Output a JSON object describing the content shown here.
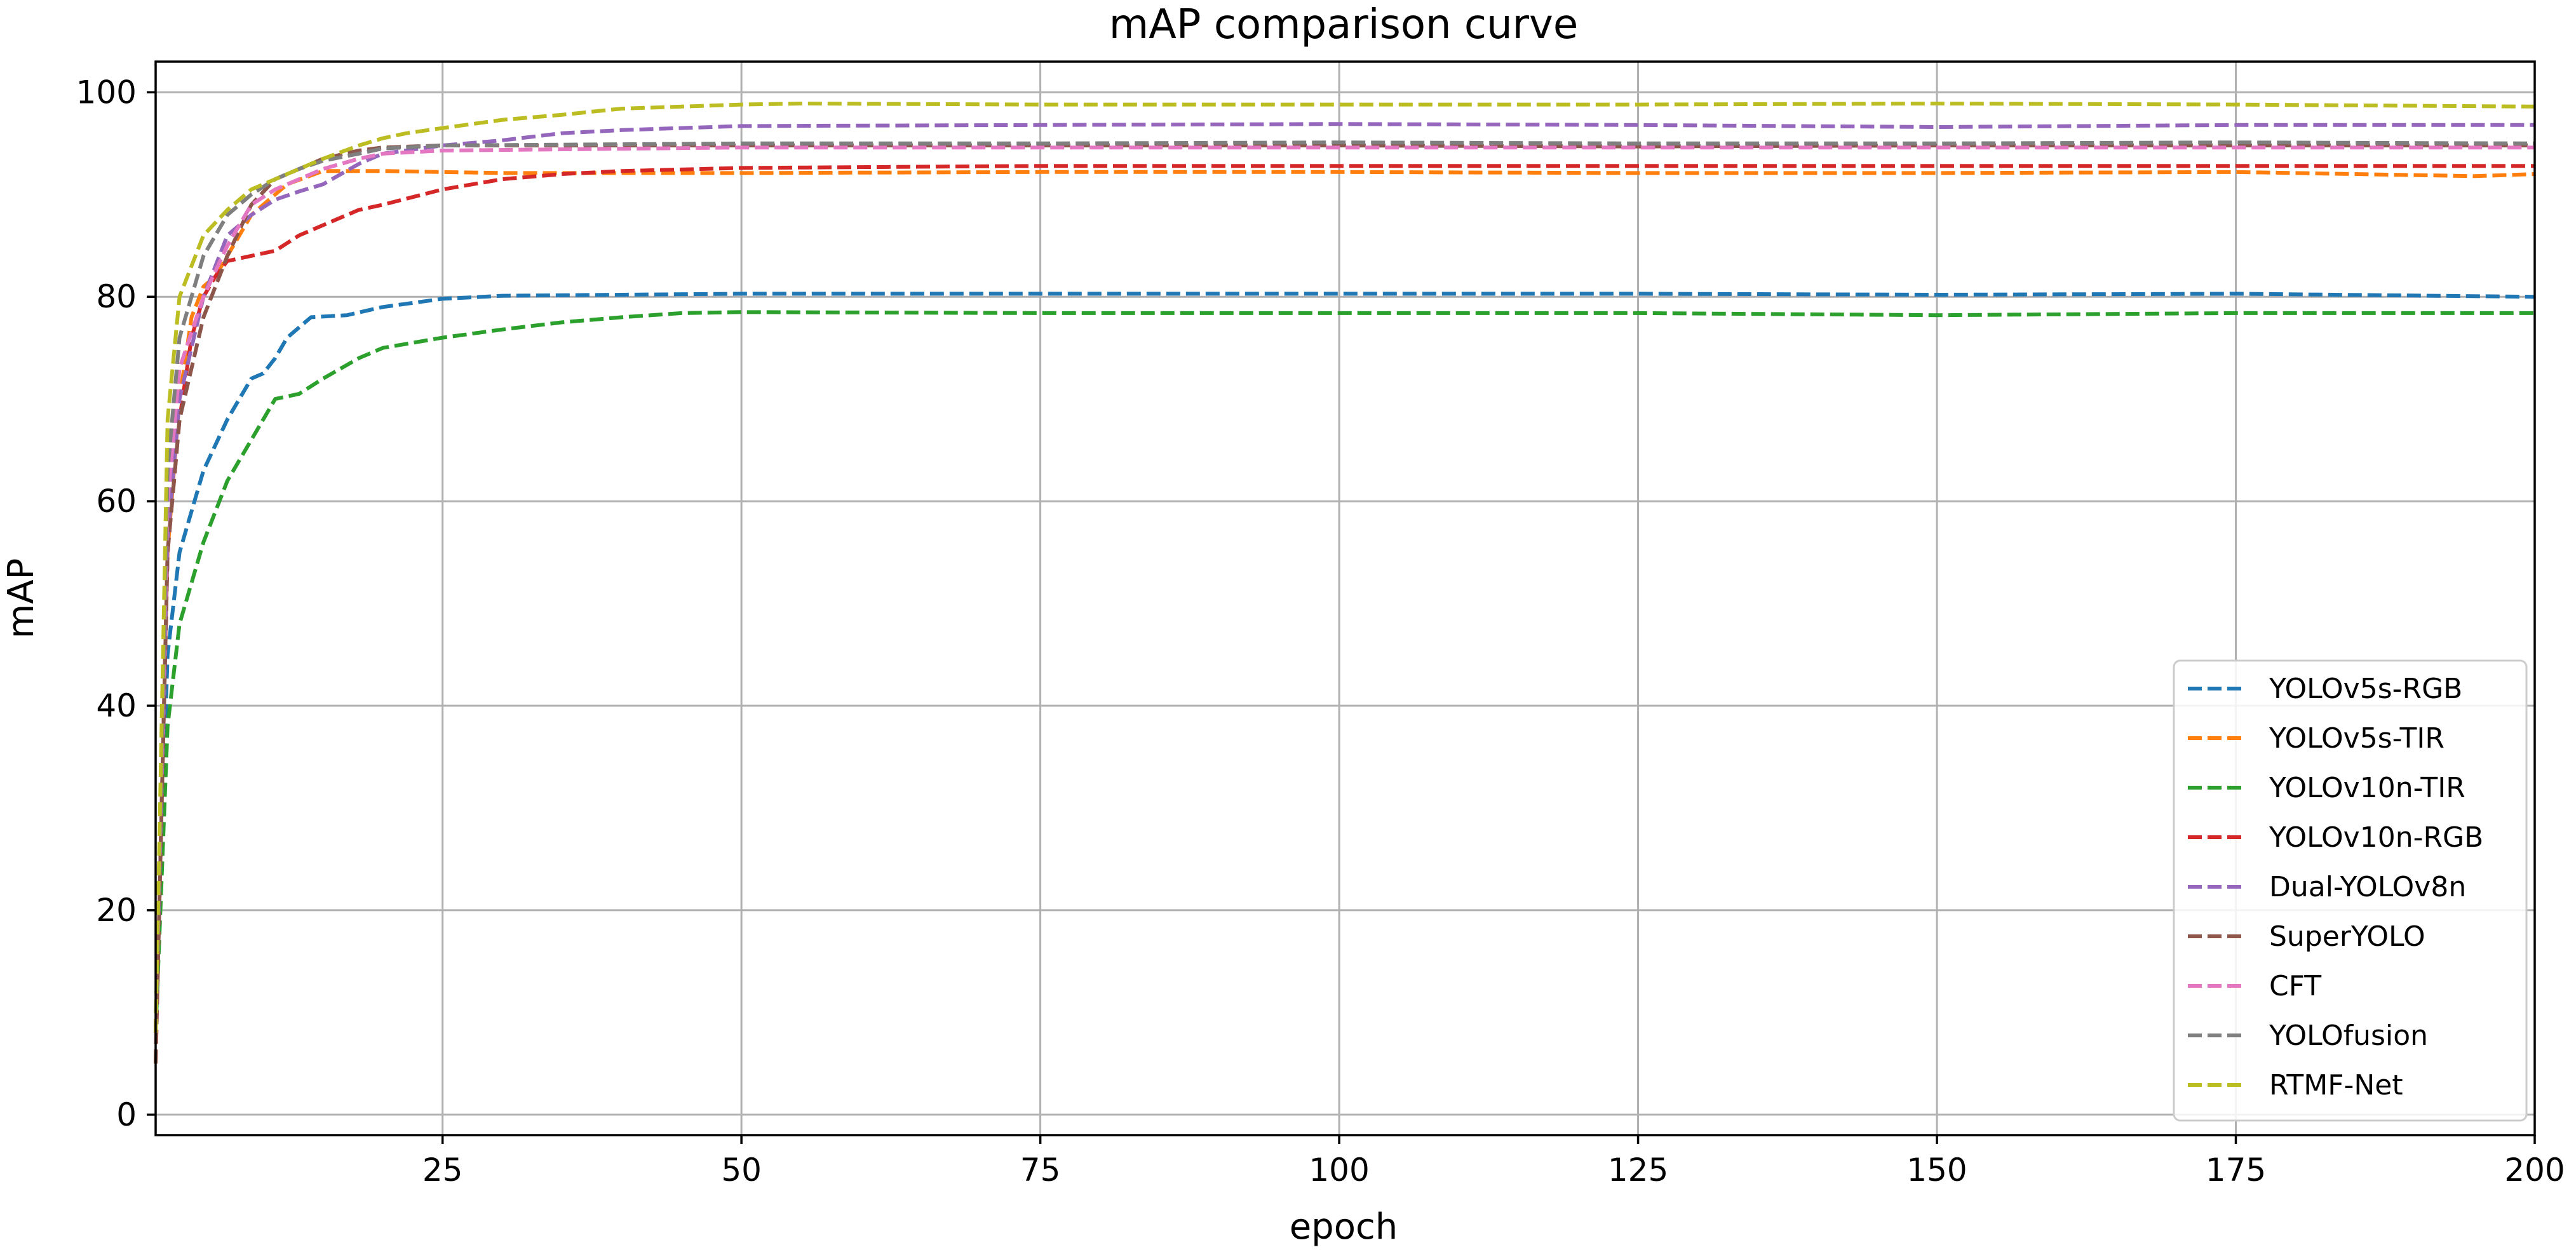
{
  "chart_data": {
    "type": "line",
    "title": "mAP comparison curve",
    "xlabel": "epoch",
    "ylabel": "mAP",
    "xlim": [
      1,
      200
    ],
    "ylim": [
      -2,
      103
    ],
    "xticks": [
      25,
      50,
      75,
      100,
      125,
      150,
      175,
      200
    ],
    "yticks": [
      0,
      20,
      40,
      60,
      80,
      100
    ],
    "grid": true,
    "legend_position": "lower-right",
    "line_style": "dashed",
    "series": [
      {
        "name": "YOLOv5s-RGB",
        "color": "#1f77b4",
        "points": [
          [
            1,
            8
          ],
          [
            2,
            45
          ],
          [
            3,
            55
          ],
          [
            5,
            63
          ],
          [
            7,
            68
          ],
          [
            9,
            72
          ],
          [
            10,
            72.5
          ],
          [
            11,
            74
          ],
          [
            12,
            76
          ],
          [
            14,
            78
          ],
          [
            17,
            78.2
          ],
          [
            20,
            79
          ],
          [
            25,
            79.8
          ],
          [
            30,
            80.1
          ],
          [
            40,
            80.2
          ],
          [
            50,
            80.3
          ],
          [
            75,
            80.3
          ],
          [
            100,
            80.3
          ],
          [
            125,
            80.3
          ],
          [
            150,
            80.2
          ],
          [
            175,
            80.3
          ],
          [
            200,
            80.0
          ]
        ]
      },
      {
        "name": "YOLOv5s-TIR",
        "color": "#ff7f0e",
        "points": [
          [
            1,
            8
          ],
          [
            2,
            55
          ],
          [
            3,
            70
          ],
          [
            4,
            78
          ],
          [
            5,
            81
          ],
          [
            6,
            82
          ],
          [
            7,
            84
          ],
          [
            9,
            88
          ],
          [
            12,
            91
          ],
          [
            15,
            92.3
          ],
          [
            20,
            92.3
          ],
          [
            30,
            92.1
          ],
          [
            50,
            92.1
          ],
          [
            75,
            92.2
          ],
          [
            100,
            92.2
          ],
          [
            125,
            92.1
          ],
          [
            150,
            92.1
          ],
          [
            175,
            92.2
          ],
          [
            195,
            91.8
          ],
          [
            200,
            92.0
          ]
        ]
      },
      {
        "name": "YOLOv10n-TIR",
        "color": "#2ca02c",
        "points": [
          [
            1,
            8
          ],
          [
            2,
            38
          ],
          [
            3,
            48
          ],
          [
            5,
            56
          ],
          [
            7,
            62
          ],
          [
            9,
            66
          ],
          [
            11,
            70
          ],
          [
            13,
            70.5
          ],
          [
            15,
            72
          ],
          [
            18,
            74
          ],
          [
            20,
            75
          ],
          [
            25,
            76
          ],
          [
            30,
            76.8
          ],
          [
            35,
            77.5
          ],
          [
            40,
            78
          ],
          [
            45,
            78.4
          ],
          [
            50,
            78.5
          ],
          [
            75,
            78.4
          ],
          [
            100,
            78.4
          ],
          [
            125,
            78.4
          ],
          [
            150,
            78.2
          ],
          [
            175,
            78.4
          ],
          [
            200,
            78.4
          ]
        ]
      },
      {
        "name": "YOLOv10n-RGB",
        "color": "#d62728",
        "points": [
          [
            1,
            5
          ],
          [
            2,
            55
          ],
          [
            3,
            68
          ],
          [
            4,
            76
          ],
          [
            5,
            80
          ],
          [
            6,
            82
          ],
          [
            7,
            83.5
          ],
          [
            9,
            84
          ],
          [
            11,
            84.5
          ],
          [
            13,
            86
          ],
          [
            15,
            87
          ],
          [
            18,
            88.5
          ],
          [
            20,
            89
          ],
          [
            25,
            90.5
          ],
          [
            30,
            91.5
          ],
          [
            35,
            92
          ],
          [
            40,
            92.3
          ],
          [
            50,
            92.6
          ],
          [
            75,
            92.8
          ],
          [
            100,
            92.8
          ],
          [
            125,
            92.8
          ],
          [
            150,
            92.8
          ],
          [
            175,
            92.8
          ],
          [
            200,
            92.8
          ]
        ]
      },
      {
        "name": "Dual-YOLOv8n",
        "color": "#9467bd",
        "points": [
          [
            1,
            8
          ],
          [
            2,
            56
          ],
          [
            3,
            70
          ],
          [
            5,
            80
          ],
          [
            7,
            86
          ],
          [
            9,
            88
          ],
          [
            11,
            89.5
          ],
          [
            13,
            90.3
          ],
          [
            15,
            91
          ],
          [
            18,
            93
          ],
          [
            20,
            94
          ],
          [
            25,
            94.8
          ],
          [
            30,
            95.3
          ],
          [
            35,
            96
          ],
          [
            40,
            96.3
          ],
          [
            50,
            96.7
          ],
          [
            75,
            96.8
          ],
          [
            100,
            96.9
          ],
          [
            125,
            96.8
          ],
          [
            150,
            96.6
          ],
          [
            175,
            96.8
          ],
          [
            200,
            96.8
          ]
        ]
      },
      {
        "name": "SuperYOLO",
        "color": "#8c564b",
        "points": [
          [
            1,
            5
          ],
          [
            2,
            55
          ],
          [
            3,
            68
          ],
          [
            5,
            78
          ],
          [
            7,
            84
          ],
          [
            9,
            89
          ],
          [
            11,
            91.5
          ],
          [
            13,
            92.5
          ],
          [
            15,
            93.5
          ],
          [
            18,
            94.3
          ],
          [
            20,
            94.6
          ],
          [
            25,
            94.8
          ],
          [
            50,
            94.8
          ],
          [
            75,
            94.8
          ],
          [
            100,
            94.8
          ],
          [
            125,
            94.7
          ],
          [
            150,
            94.8
          ],
          [
            175,
            94.8
          ],
          [
            200,
            94.8
          ]
        ]
      },
      {
        "name": "CFT",
        "color": "#e377c2",
        "points": [
          [
            1,
            8
          ],
          [
            2,
            60
          ],
          [
            3,
            73
          ],
          [
            5,
            80
          ],
          [
            7,
            85
          ],
          [
            9,
            89
          ],
          [
            11,
            90.5
          ],
          [
            13,
            91.5
          ],
          [
            15,
            92.5
          ],
          [
            18,
            93.5
          ],
          [
            20,
            94
          ],
          [
            25,
            94.3
          ],
          [
            50,
            94.6
          ],
          [
            75,
            94.6
          ],
          [
            100,
            94.6
          ],
          [
            125,
            94.6
          ],
          [
            150,
            94.6
          ],
          [
            175,
            94.6
          ],
          [
            200,
            94.6
          ]
        ]
      },
      {
        "name": "YOLOfusion",
        "color": "#7f7f7f",
        "points": [
          [
            1,
            8
          ],
          [
            2,
            63
          ],
          [
            3,
            76
          ],
          [
            5,
            84
          ],
          [
            7,
            88
          ],
          [
            9,
            90
          ],
          [
            11,
            91.5
          ],
          [
            13,
            92.5
          ],
          [
            15,
            93.3
          ],
          [
            18,
            94
          ],
          [
            20,
            94.5
          ],
          [
            25,
            94.8
          ],
          [
            50,
            95
          ],
          [
            75,
            95
          ],
          [
            100,
            95.1
          ],
          [
            125,
            95
          ],
          [
            150,
            95
          ],
          [
            175,
            95.1
          ],
          [
            200,
            95
          ]
        ]
      },
      {
        "name": "RTMF-Net",
        "color": "#bcbd22",
        "points": [
          [
            1,
            8
          ],
          [
            2,
            68
          ],
          [
            3,
            80
          ],
          [
            5,
            86
          ],
          [
            7,
            88.5
          ],
          [
            9,
            90.5
          ],
          [
            11,
            91.5
          ],
          [
            13,
            92.5
          ],
          [
            15,
            93.5
          ],
          [
            18,
            94.8
          ],
          [
            20,
            95.5
          ],
          [
            22,
            96
          ],
          [
            25,
            96.5
          ],
          [
            30,
            97.3
          ],
          [
            35,
            97.8
          ],
          [
            40,
            98.4
          ],
          [
            45,
            98.6
          ],
          [
            50,
            98.8
          ],
          [
            55,
            98.9
          ],
          [
            75,
            98.8
          ],
          [
            100,
            98.8
          ],
          [
            125,
            98.8
          ],
          [
            150,
            98.9
          ],
          [
            175,
            98.8
          ],
          [
            200,
            98.6
          ]
        ]
      }
    ]
  }
}
